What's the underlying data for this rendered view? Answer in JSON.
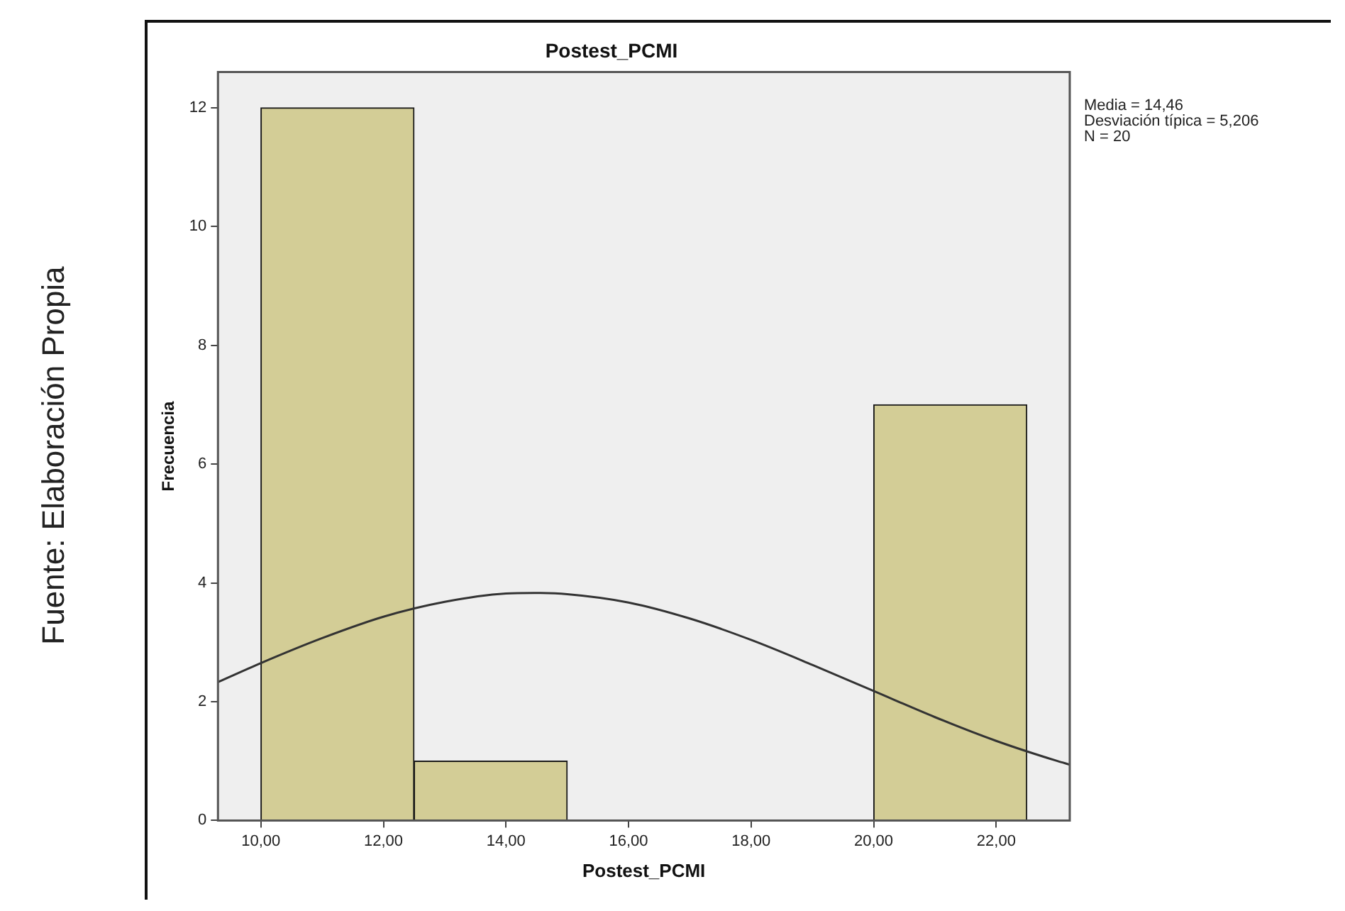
{
  "chart_data": {
    "type": "histogram",
    "title": "Postest_PCMI",
    "xlabel": "Postest_PCMI",
    "ylabel": "Frecuencia",
    "bins": [
      10,
      12.5,
      15,
      17.5,
      20,
      22.5
    ],
    "values": [
      12,
      1,
      0,
      0,
      7
    ],
    "color": "#d3cd96",
    "series": [
      {
        "type": "line",
        "color": "#333333",
        "x": [
          9.3,
          10,
          11,
          12,
          13,
          14,
          14.46,
          15,
          16,
          17,
          18,
          19,
          20,
          21,
          22,
          23,
          23.2
        ],
        "values": [
          2.33,
          2.65,
          3.07,
          3.43,
          3.68,
          3.82,
          3.83,
          3.81,
          3.67,
          3.4,
          3.04,
          2.62,
          2.18,
          1.74,
          1.34,
          1.0,
          0.94
        ]
      }
    ],
    "xlim": [
      9.3,
      23.2
    ],
    "ylim": [
      0,
      12.6
    ],
    "xticks": [
      {
        "value": 10,
        "label": "10,00"
      },
      {
        "value": 12,
        "label": "12,00"
      },
      {
        "value": 14,
        "label": "14,00"
      },
      {
        "value": 16,
        "label": "16,00"
      },
      {
        "value": 18,
        "label": "18,00"
      },
      {
        "value": 20,
        "label": "20,00"
      },
      {
        "value": 22,
        "label": "22,00"
      }
    ],
    "yticks": [
      0,
      2,
      4,
      6,
      8,
      10,
      12
    ],
    "annotations": [
      "Media = 14,46",
      "Desviación típica = 5,206",
      "N = 20",
      "Fuente: Elaboración Propia"
    ]
  }
}
